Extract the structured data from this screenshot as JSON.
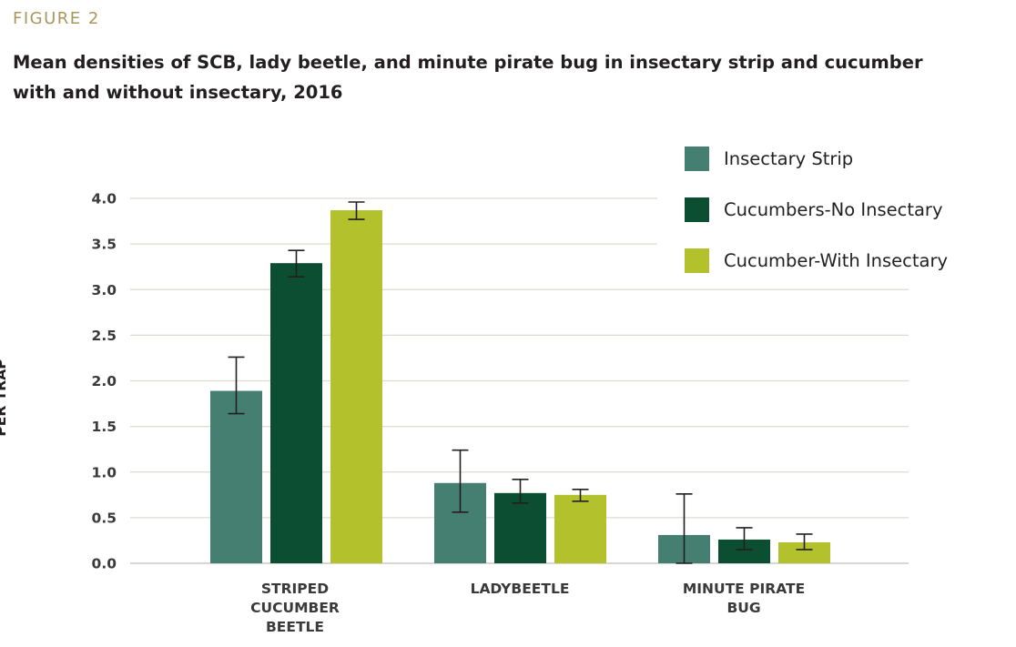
{
  "figure_label": "FIGURE 2",
  "chart_data": {
    "type": "bar",
    "title": "Mean densities of SCB, lady beetle, and minute pirate bug in insectary strip and cucumber with and without insectary, 2016",
    "ylabel": "AVERAGE NO. OF INSECTS\nPER TRAP",
    "xlabel": "",
    "categories": [
      "STRIPED\nCUCUMBER\nBEETLE",
      "LADYBEETLE",
      "MINUTE PIRATE\nBUG"
    ],
    "ylim": [
      0,
      4.0
    ],
    "y_ticks": [
      "0.0",
      "0.5",
      "1.0",
      "1.5",
      "2.0",
      "2.5",
      "3.0",
      "3.5",
      "4.0"
    ],
    "grid": true,
    "legend_position": "top-right",
    "series": [
      {
        "name": "Insectary Strip",
        "color": "#457f72",
        "values": [
          1.89,
          0.88,
          0.31
        ],
        "error_low": [
          1.64,
          0.56,
          0.0
        ],
        "error_high": [
          2.26,
          1.24,
          0.76
        ]
      },
      {
        "name": "Cucumbers-No Insectary",
        "color": "#0b4e32",
        "values": [
          3.29,
          0.77,
          0.26
        ],
        "error_low": [
          3.14,
          0.66,
          0.15
        ],
        "error_high": [
          3.43,
          0.92,
          0.39
        ]
      },
      {
        "name": "Cucumber-With Insectary",
        "color": "#b3c22c",
        "values": [
          3.87,
          0.75,
          0.23
        ],
        "error_low": [
          3.77,
          0.68,
          0.15
        ],
        "error_high": [
          3.96,
          0.81,
          0.32
        ]
      }
    ]
  }
}
